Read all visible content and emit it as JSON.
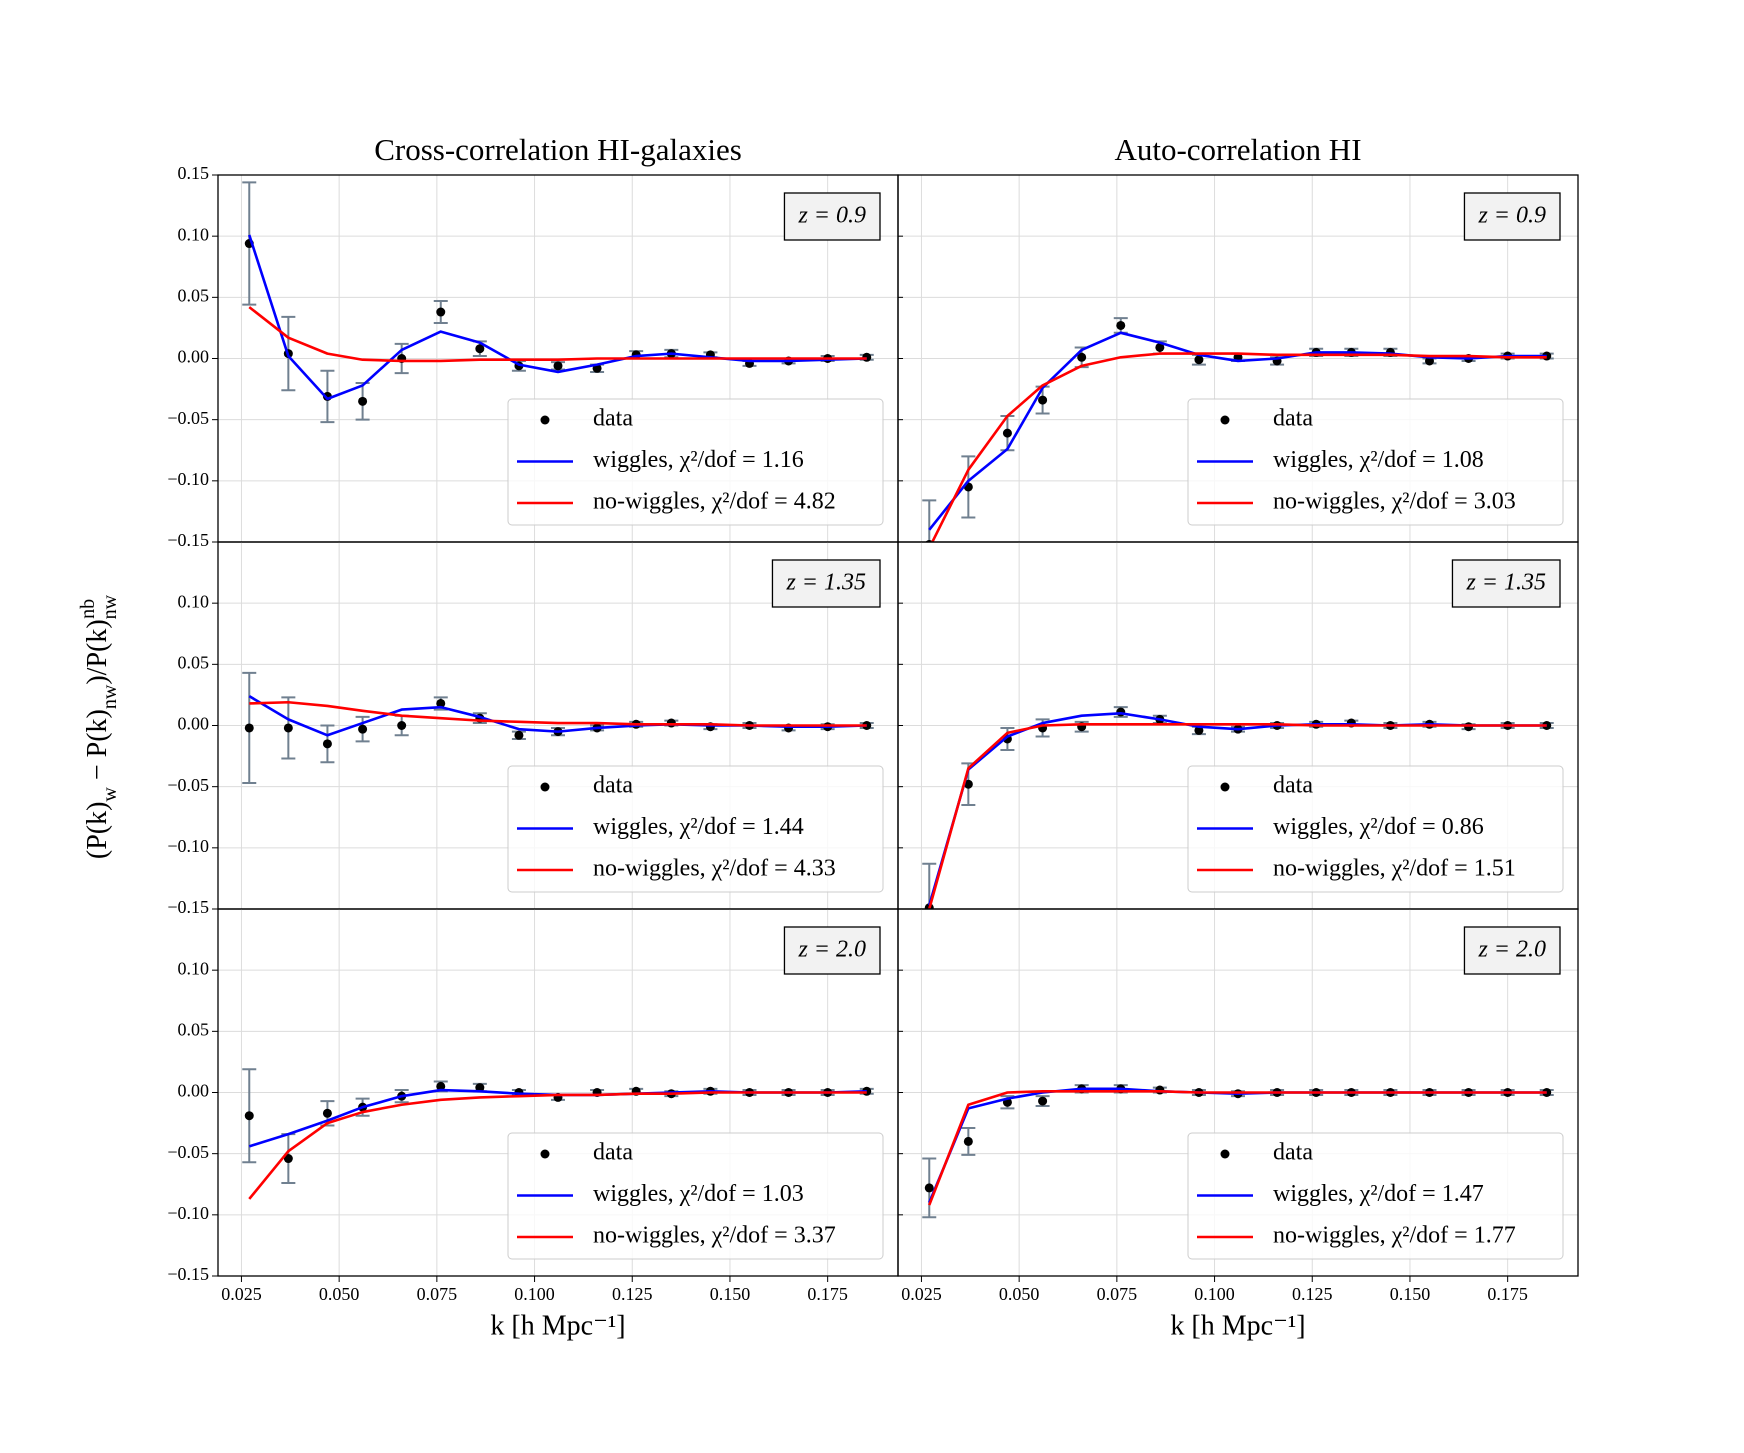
{
  "ylabel": [
    "(P(k)",
    "w",
    " − P(k)",
    "nw",
    ")/P(k)",
    "nw",
    "nb"
  ],
  "chart_data": [
    {
      "type": "line",
      "title": "Cross-correlation HI-galaxies",
      "label": "z = 0.9",
      "legend": "lower right",
      "grid": true,
      "x": [
        0.027,
        0.037,
        0.047,
        0.056,
        0.066,
        0.076,
        0.086,
        0.096,
        0.106,
        0.116,
        0.126,
        0.135,
        0.145,
        0.155,
        0.165,
        0.175,
        0.185
      ],
      "xlim": [
        0.019,
        0.193
      ],
      "ylim": [
        -0.15,
        0.15
      ],
      "yticks": [
        {
          "value": -0.15,
          "label": "−0.15"
        },
        {
          "value": -0.1,
          "label": "−0.10"
        },
        {
          "value": -0.05,
          "label": "−0.05"
        },
        {
          "value": 0,
          "label": "0.00"
        },
        0.05,
        {
          "value": 0.1,
          "label": "0.10"
        },
        0.15
      ],
      "series": [
        {
          "name": "data",
          "type": "scatter",
          "color": "#000000",
          "error_color": "#708090",
          "values": [
            0.094,
            0.004,
            -0.031,
            -0.035,
            0.0,
            0.038,
            0.008,
            -0.006,
            -0.006,
            -0.008,
            0.003,
            0.004,
            0.003,
            -0.004,
            -0.002,
            0.0,
            0.001
          ],
          "errors": [
            0.05,
            0.03,
            0.021,
            0.015,
            0.012,
            0.009,
            0.006,
            0.004,
            0.003,
            0.003,
            0.003,
            0.003,
            0.002,
            0.002,
            0.002,
            0.002,
            0.002
          ]
        },
        {
          "name": "wiggles, χ²/dof = 1.16",
          "type": "line",
          "color": "#0000ff",
          "values": [
            0.101,
            0.002,
            -0.033,
            -0.022,
            0.007,
            0.022,
            0.013,
            -0.005,
            -0.011,
            -0.005,
            0.002,
            0.004,
            0.001,
            -0.002,
            -0.002,
            -0.001,
            0.0
          ]
        },
        {
          "name": "no-wiggles, χ²/dof = 4.82",
          "type": "line",
          "color": "#ff0000",
          "values": [
            0.042,
            0.017,
            0.004,
            -0.001,
            -0.002,
            -0.002,
            -0.001,
            -0.001,
            -0.001,
            0,
            0,
            0,
            0,
            0,
            0,
            0,
            0
          ]
        }
      ]
    },
    {
      "type": "line",
      "title": "Auto-correlation HI",
      "label": "z = 0.9",
      "legend": "lower right",
      "grid": true,
      "x": [
        0.027,
        0.037,
        0.047,
        0.056,
        0.066,
        0.076,
        0.086,
        0.096,
        0.106,
        0.116,
        0.126,
        0.135,
        0.145,
        0.155,
        0.165,
        0.175,
        0.185
      ],
      "xlim": [
        0.019,
        0.193
      ],
      "ylim": [
        -0.15,
        0.15
      ],
      "series": [
        {
          "name": "data",
          "type": "scatter",
          "color": "#000000",
          "error_color": "#708090",
          "values": [
            -0.152,
            -0.105,
            -0.061,
            -0.034,
            0.001,
            0.027,
            0.009,
            -0.001,
            0.001,
            -0.002,
            0.005,
            0.005,
            0.005,
            -0.002,
            0,
            0.002,
            0.002
          ],
          "errors": [
            0.036,
            0.025,
            0.014,
            0.011,
            0.008,
            0.006,
            0.005,
            0.004,
            0.003,
            0.003,
            0.003,
            0.003,
            0.003,
            0.002,
            0.002,
            0.002,
            0.002
          ]
        },
        {
          "name": "wiggles, χ²/dof = 1.08",
          "type": "line",
          "color": "#0000ff",
          "values": [
            -0.14,
            -0.1,
            -0.074,
            -0.024,
            0.007,
            0.021,
            0.013,
            0.003,
            -0.002,
            0,
            0.005,
            0.005,
            0.004,
            0.001,
            0,
            0.002,
            0.002
          ]
        },
        {
          "name": "no-wiggles, χ²/dof = 3.03",
          "type": "line",
          "color": "#ff0000",
          "values": [
            -0.155,
            -0.091,
            -0.047,
            -0.022,
            -0.006,
            0.001,
            0.004,
            0.004,
            0.004,
            0.003,
            0.003,
            0.003,
            0.003,
            0.002,
            0.002,
            0.001,
            0.001
          ]
        }
      ]
    },
    {
      "type": "line",
      "label": "z = 1.35",
      "legend": "lower right",
      "grid": true,
      "x": [
        0.027,
        0.037,
        0.047,
        0.056,
        0.066,
        0.076,
        0.086,
        0.096,
        0.106,
        0.116,
        0.126,
        0.135,
        0.145,
        0.155,
        0.165,
        0.175,
        0.185
      ],
      "xlim": [
        0.019,
        0.193
      ],
      "ylim": [
        -0.15,
        0.15
      ],
      "yticks": [
        {
          "value": -0.15,
          "label": "−0.15"
        },
        {
          "value": -0.1,
          "label": "−0.10"
        },
        {
          "value": -0.05,
          "label": "−0.05"
        },
        {
          "value": 0,
          "label": "0.00"
        },
        0.05,
        {
          "value": 0.1,
          "label": "0.10"
        }
      ],
      "series": [
        {
          "name": "data",
          "type": "scatter",
          "color": "#000000",
          "error_color": "#708090",
          "values": [
            -0.002,
            -0.002,
            -0.015,
            -0.003,
            0,
            0.018,
            0.006,
            -0.008,
            -0.005,
            -0.002,
            0.001,
            0.002,
            -0.001,
            0,
            -0.002,
            -0.001,
            0
          ],
          "errors": [
            0.045,
            0.025,
            0.015,
            0.01,
            0.008,
            0.005,
            0.004,
            0.003,
            0.003,
            0.002,
            0.002,
            0.002,
            0.002,
            0.002,
            0.002,
            0.002,
            0.002
          ]
        },
        {
          "name": "wiggles, χ²/dof = 1.44",
          "type": "line",
          "color": "#0000ff",
          "values": [
            0.024,
            0.005,
            -0.008,
            0.002,
            0.013,
            0.015,
            0.007,
            -0.003,
            -0.005,
            -0.002,
            0,
            0.001,
            0,
            0,
            -0.001,
            -0.001,
            0
          ]
        },
        {
          "name": "no-wiggles, χ²/dof = 4.33",
          "type": "line",
          "color": "#ff0000",
          "values": [
            0.018,
            0.019,
            0.016,
            0.012,
            0.008,
            0.006,
            0.004,
            0.003,
            0.002,
            0.002,
            0.001,
            0.001,
            0.001,
            0,
            0,
            0,
            0
          ]
        }
      ]
    },
    {
      "type": "line",
      "label": "z = 1.35",
      "legend": "lower right",
      "grid": true,
      "x": [
        0.027,
        0.037,
        0.047,
        0.056,
        0.066,
        0.076,
        0.086,
        0.096,
        0.106,
        0.116,
        0.126,
        0.135,
        0.145,
        0.155,
        0.165,
        0.175,
        0.185
      ],
      "xlim": [
        0.019,
        0.193
      ],
      "ylim": [
        -0.15,
        0.15
      ],
      "series": [
        {
          "name": "data",
          "type": "scatter",
          "color": "#000000",
          "error_color": "#708090",
          "values": [
            -0.149,
            -0.048,
            -0.011,
            -0.002,
            -0.001,
            0.011,
            0.005,
            -0.004,
            -0.003,
            0,
            0.001,
            0.002,
            0,
            0.001,
            -0.001,
            0,
            0
          ],
          "errors": [
            0.036,
            0.017,
            0.009,
            0.007,
            0.004,
            0.004,
            0.003,
            0.003,
            0.002,
            0.002,
            0.002,
            0.002,
            0.002,
            0.002,
            0.002,
            0.002,
            0.002
          ]
        },
        {
          "name": "wiggles, χ²/dof = 0.86",
          "type": "line",
          "color": "#0000ff",
          "values": [
            -0.147,
            -0.036,
            -0.009,
            0.002,
            0.008,
            0.01,
            0.005,
            -0.001,
            -0.003,
            0,
            0.001,
            0.001,
            0,
            0.001,
            0,
            0,
            0
          ]
        },
        {
          "name": "no-wiggles, χ²/dof = 1.51",
          "type": "line",
          "color": "#ff0000",
          "values": [
            -0.15,
            -0.035,
            -0.006,
            0,
            0.001,
            0.001,
            0.001,
            0.001,
            0.001,
            0.001,
            0,
            0,
            0,
            0,
            0,
            0,
            0
          ]
        }
      ]
    },
    {
      "type": "line",
      "label": "z = 2.0",
      "legend": "lower right",
      "grid": true,
      "xlabel": "k [h Mpc⁻¹]",
      "x": [
        0.027,
        0.037,
        0.047,
        0.056,
        0.066,
        0.076,
        0.086,
        0.096,
        0.106,
        0.116,
        0.126,
        0.135,
        0.145,
        0.155,
        0.165,
        0.175,
        0.185
      ],
      "xlim": [
        0.019,
        0.193
      ],
      "ylim": [
        -0.15,
        0.15
      ],
      "xticks": [
        0.025,
        {
          "value": 0.05,
          "label": "0.050"
        },
        0.075,
        {
          "value": 0.1,
          "label": "0.100"
        },
        0.125,
        {
          "value": 0.15,
          "label": "0.150"
        },
        0.175
      ],
      "yticks": [
        {
          "value": -0.15,
          "label": "−0.15"
        },
        {
          "value": -0.1,
          "label": "−0.10"
        },
        {
          "value": -0.05,
          "label": "−0.05"
        },
        {
          "value": 0,
          "label": "0.00"
        },
        0.05,
        {
          "value": 0.1,
          "label": "0.10"
        }
      ],
      "series": [
        {
          "name": "data",
          "type": "scatter",
          "color": "#000000",
          "error_color": "#708090",
          "values": [
            -0.019,
            -0.054,
            -0.017,
            -0.012,
            -0.003,
            0.005,
            0.004,
            0,
            -0.004,
            0,
            0.001,
            -0.001,
            0.001,
            0,
            0,
            0,
            0.001
          ],
          "errors": [
            0.038,
            0.02,
            0.01,
            0.007,
            0.005,
            0.004,
            0.003,
            0.002,
            0.002,
            0.002,
            0.002,
            0.002,
            0.002,
            0.002,
            0.002,
            0.002,
            0.002
          ]
        },
        {
          "name": "wiggles, χ²/dof = 1.03",
          "type": "line",
          "color": "#0000ff",
          "values": [
            -0.044,
            -0.034,
            -0.023,
            -0.012,
            -0.003,
            0.002,
            0.001,
            -0.001,
            -0.002,
            -0.002,
            -0.001,
            0,
            0.001,
            0,
            0,
            0,
            0.001
          ]
        },
        {
          "name": "no-wiggles, χ²/dof = 3.37",
          "type": "line",
          "color": "#ff0000",
          "values": [
            -0.087,
            -0.048,
            -0.025,
            -0.016,
            -0.01,
            -0.006,
            -0.004,
            -0.003,
            -0.002,
            -0.002,
            -0.001,
            -0.001,
            0,
            0,
            0,
            0,
            0
          ]
        }
      ]
    },
    {
      "type": "line",
      "label": "z = 2.0",
      "legend": "lower right",
      "grid": true,
      "xlabel": "k [h Mpc⁻¹]",
      "x": [
        0.027,
        0.037,
        0.047,
        0.056,
        0.066,
        0.076,
        0.086,
        0.096,
        0.106,
        0.116,
        0.126,
        0.135,
        0.145,
        0.155,
        0.165,
        0.175,
        0.185
      ],
      "xlim": [
        0.019,
        0.193
      ],
      "ylim": [
        -0.15,
        0.15
      ],
      "xticks": [
        0.025,
        {
          "value": 0.05,
          "label": "0.050"
        },
        0.075,
        {
          "value": 0.1,
          "label": "0.100"
        },
        0.125,
        {
          "value": 0.15,
          "label": "0.150"
        },
        0.175
      ],
      "series": [
        {
          "name": "data",
          "type": "scatter",
          "color": "#000000",
          "error_color": "#708090",
          "values": [
            -0.078,
            -0.04,
            -0.008,
            -0.007,
            0.003,
            0.003,
            0.002,
            0,
            -0.001,
            0,
            0,
            0,
            0,
            0,
            0,
            0,
            0
          ],
          "errors": [
            0.024,
            0.011,
            0.005,
            0.004,
            0.003,
            0.003,
            0.002,
            0.002,
            0.002,
            0.002,
            0.002,
            0.002,
            0.002,
            0.002,
            0.002,
            0.002,
            0.002
          ]
        },
        {
          "name": "wiggles, χ²/dof = 1.47",
          "type": "line",
          "color": "#0000ff",
          "values": [
            -0.09,
            -0.013,
            -0.005,
            0,
            0.003,
            0.003,
            0.001,
            0,
            -0.001,
            0,
            0,
            0,
            0,
            0,
            0,
            0,
            0
          ]
        },
        {
          "name": "no-wiggles, χ²/dof = 1.77",
          "type": "line",
          "color": "#ff0000",
          "values": [
            -0.092,
            -0.01,
            0,
            0.001,
            0.001,
            0.001,
            0.001,
            0,
            0,
            0,
            0,
            0,
            0,
            0,
            0,
            0,
            0
          ]
        }
      ]
    }
  ]
}
